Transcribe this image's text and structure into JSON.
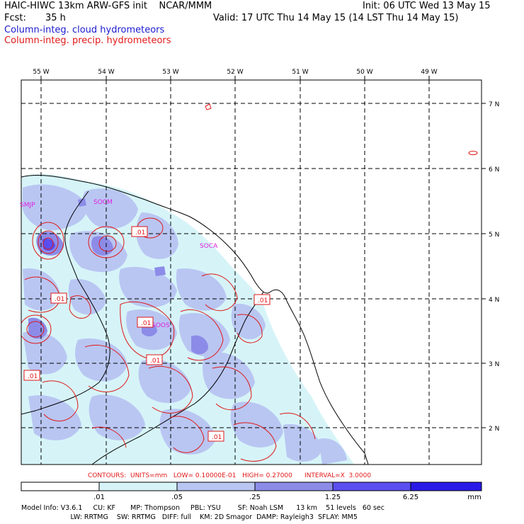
{
  "header": {
    "title_left": "HAIC-HIWC 13km ARW-GFS init    NCAR/MMM",
    "init": "Init: 06 UTC Wed 13 May 15",
    "fcst_label": "Fcst:",
    "fcst_value": "35 h",
    "valid": "Valid: 17 UTC Thu 14 May 15 (14 LST Thu 14 May 15)",
    "legend_cloud": "Column-integ. cloud hydrometeors",
    "legend_precip": "Column-integ. precip. hydrometeors"
  },
  "axes": {
    "lon_labels": [
      "55 W",
      "54 W",
      "53 W",
      "52 W",
      "51 W",
      "50 W",
      "49 W"
    ],
    "lat_labels": [
      "7 N",
      "6 N",
      "5 N",
      "4 N",
      "3 N",
      "2 N"
    ]
  },
  "stations": [
    "SMJP",
    "SOCM",
    "SOCA",
    "SOOS"
  ],
  "contour_labels": [
    ".01",
    ".01",
    ".01",
    ".01",
    ".01",
    ".01",
    ".01"
  ],
  "contour_info": "CONTOURS:  UNITS=mm   LOW= 0.10000E-01   HIGH= 0.27000      INTERVAL=X  3.0000",
  "colorbar": {
    "labels": [
      ".01",
      ".05",
      ".25",
      "1.25",
      "6.25"
    ],
    "unit": "mm",
    "colors": [
      "#ffffff",
      "#d6f4f8",
      "#b9c6f2",
      "#8c8ce8",
      "#5a4ef0",
      "#2a1ae8"
    ]
  },
  "model_info": {
    "line1": "Model Info: V3.6.1     CU: KF       MP: Thompson     PBL: YSU        SF: Noah LSM      13 km    51 levels   60 sec",
    "line2": "                       LW: RRTMG    SW: RRTMG   DIFF: full    KM: 2D Smagor  DAMP: Rayleigh3  SFLAY: MM5"
  },
  "colors": {
    "cloud": "#1a1ad0",
    "precip": "#e01818",
    "station": "#e020e0"
  }
}
